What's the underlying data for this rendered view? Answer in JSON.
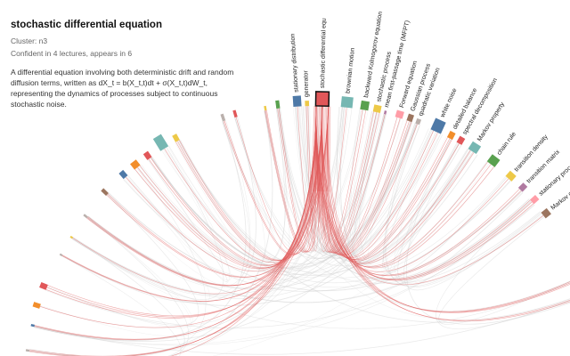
{
  "info": {
    "title": "stochastic differential equation",
    "cluster": "Cluster: n3",
    "confidence": "Confident in 4 lectures, appears in 6",
    "description": "A differential equation involving both deterministic drift and random diffusion terms, written as dX_t = b(X_t,t)dt + σ(X_t,t)dW_t, representing the dynamics of processes subject to continuous stochastic noise."
  },
  "chord": {
    "selected": "stochastic differential equ",
    "highlight_color": "#e05a5a",
    "labeled_nodes": [
      {
        "label": "stationary distribution",
        "color": "#4e79a7"
      },
      {
        "label": "generator",
        "color": "#edc948"
      },
      {
        "label": "stochastic differential equ",
        "color": "#e15759"
      },
      {
        "label": "brownian motion",
        "color": "#76b7b2"
      },
      {
        "label": "backward Kolmogorov equation",
        "color": "#59a14f"
      },
      {
        "label": "stochastic process",
        "color": "#edc948"
      },
      {
        "label": "mean first-passage time (MFPT)",
        "color": "#b07aa1"
      },
      {
        "label": "Forward equation",
        "color": "#ff9da7"
      },
      {
        "label": "Gaussian process",
        "color": "#9c755f"
      },
      {
        "label": "quadratic variation",
        "color": "#bab0ac"
      },
      {
        "label": "white noise",
        "color": "#4e79a7"
      },
      {
        "label": "detailed balance",
        "color": "#f28e2b"
      },
      {
        "label": "spectral decomposition",
        "color": "#e15759"
      },
      {
        "label": "Markov property",
        "color": "#76b7b2"
      },
      {
        "label": "chain rule",
        "color": "#59a14f"
      },
      {
        "label": "transition density",
        "color": "#edc948"
      },
      {
        "label": "transition matrix",
        "color": "#b07aa1"
      },
      {
        "label": "stationary process",
        "color": "#ff9da7"
      },
      {
        "label": "Markov chain",
        "color": "#9c755f"
      }
    ],
    "unlabeled_nodes": [
      {
        "color": "#59a14f"
      },
      {
        "color": "#edc948"
      },
      {
        "color": "#e15759"
      },
      {
        "color": "#bab0ac"
      },
      {
        "color": "#edc948"
      },
      {
        "color": "#76b7b2"
      },
      {
        "color": "#e15759"
      },
      {
        "color": "#f28e2b"
      },
      {
        "color": "#4e79a7"
      },
      {
        "color": "#9c755f"
      },
      {
        "color": "#bab0ac"
      },
      {
        "color": "#edc948"
      },
      {
        "color": "#bab0ac"
      },
      {
        "color": "#e15759"
      },
      {
        "color": "#f28e2b"
      },
      {
        "color": "#4e79a7"
      },
      {
        "color": "#bab0ac"
      },
      {
        "color": "#b07aa1"
      },
      {
        "color": "#76b7b2"
      },
      {
        "color": "#59a14f"
      }
    ]
  }
}
